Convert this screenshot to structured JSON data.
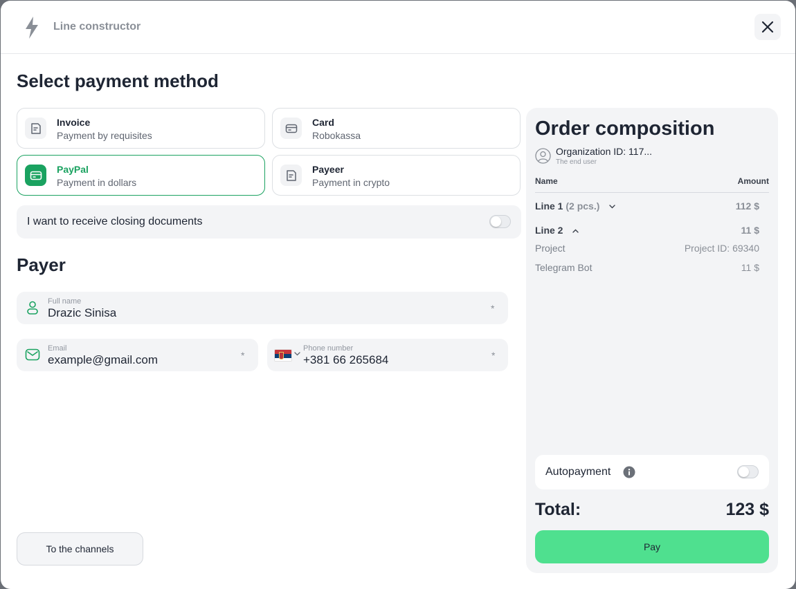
{
  "header": {
    "title": "Line constructor",
    "close_icon": "close-icon"
  },
  "payment": {
    "title": "Select payment method",
    "methods": [
      {
        "label": "Invoice",
        "sub": "Payment by requisites",
        "icon": "document-icon",
        "active": false
      },
      {
        "label": "Card",
        "sub": "Robokassa",
        "icon": "card-icon",
        "active": false
      },
      {
        "label": "PayPal",
        "sub": "Payment in dollars",
        "icon": "card-icon",
        "active": true
      },
      {
        "label": "Payeer",
        "sub": "Payment in crypto",
        "icon": "document-icon",
        "active": false
      }
    ],
    "closing_docs": "I want to receive closing documents",
    "closing_docs_enabled": false
  },
  "payer": {
    "title": "Payer",
    "full_name": {
      "caption": "Full name",
      "value": "Drazic Sinisa",
      "required": "*"
    },
    "email": {
      "caption": "Email",
      "value": "example@gmail.com",
      "required": "*"
    },
    "phone": {
      "caption": "Phone number",
      "value": "+381 66 265684",
      "required": "*",
      "country": "Serbia"
    }
  },
  "footer": {
    "channels_button": "To the channels"
  },
  "order": {
    "title": "Order composition",
    "org_name": "Organization ID: 117...",
    "org_sub": "The end user",
    "col_name": "Name",
    "col_amount": "Amount",
    "lines": [
      {
        "name": "Line 1",
        "qty": "(2 pcs.)",
        "amount": "112 $",
        "expanded": false
      },
      {
        "name": "Line 2",
        "qty": "",
        "amount": "11 $",
        "expanded": true
      }
    ],
    "line2_items": [
      {
        "name": "Project",
        "amount": "Project ID: 69340"
      },
      {
        "name": "Telegram Bot",
        "amount": "11 $"
      }
    ],
    "autopayment": "Autopayment",
    "autopayment_enabled": false,
    "total_label": "Total:",
    "total_value": "123 $",
    "pay_button": "Pay"
  },
  "colors": {
    "accent": "#1aa260",
    "pay": "#4fe08f",
    "panel": "#f3f4f6"
  }
}
